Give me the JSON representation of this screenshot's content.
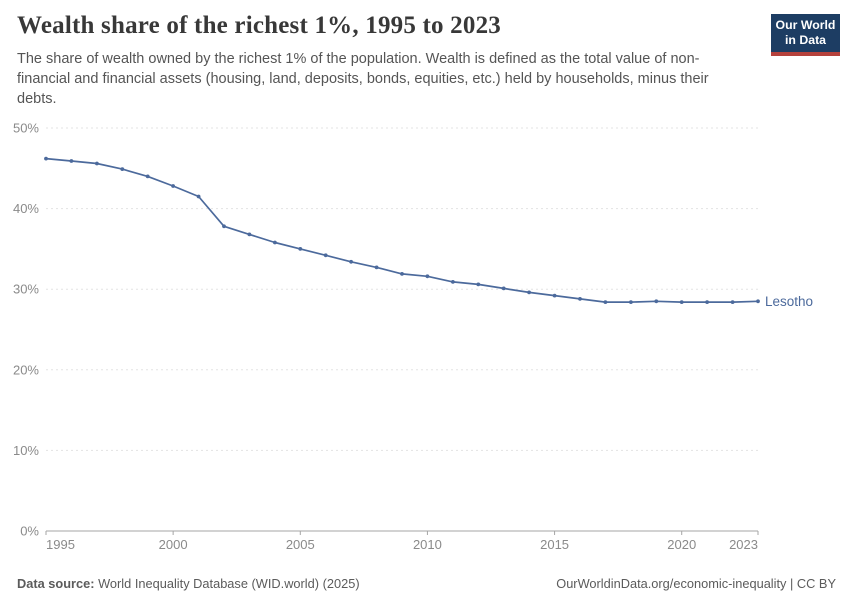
{
  "header": {
    "title": "Wealth share of the richest 1%, 1995 to 2023",
    "subtitle": "The share of wealth owned by the richest 1% of the population. Wealth is defined as the total value of non-financial and financial assets (housing, land, deposits, bonds, equities, etc.) held by households, minus their debts.",
    "logo": {
      "line1": "Our World",
      "line2": "in Data"
    }
  },
  "colors": {
    "series_blue": "#4c6a9c",
    "logo_bg": "#1d3d63",
    "logo_stripe": "#b5413c",
    "gridline": "#e3e3e3",
    "axis": "#a5a5a5",
    "tick_label": "#8a8a8a",
    "title_text": "#383838",
    "subtitle_text": "#555555",
    "footer_text": "#5b5b5b"
  },
  "chart_data": {
    "type": "line",
    "title": "Wealth share of the richest 1%, 1995 to 2023",
    "xlabel": "",
    "ylabel": "",
    "x": [
      1995,
      1996,
      1997,
      1998,
      1999,
      2000,
      2001,
      2002,
      2003,
      2004,
      2005,
      2006,
      2007,
      2008,
      2009,
      2010,
      2011,
      2012,
      2013,
      2014,
      2015,
      2016,
      2017,
      2018,
      2019,
      2020,
      2021,
      2022,
      2023
    ],
    "series": [
      {
        "name": "Lesotho",
        "color": "#4c6a9c",
        "values": [
          46.2,
          45.9,
          45.6,
          44.9,
          44.0,
          42.8,
          41.5,
          37.8,
          36.8,
          35.8,
          35.0,
          34.2,
          33.4,
          32.7,
          31.9,
          31.6,
          30.9,
          30.6,
          30.1,
          29.6,
          29.2,
          28.8,
          28.4,
          28.4,
          28.5,
          28.4,
          28.4,
          28.4,
          28.5
        ]
      }
    ],
    "xticks": [
      1995,
      2000,
      2005,
      2010,
      2015,
      2020,
      2023
    ],
    "yticks": [
      0,
      10,
      20,
      30,
      40,
      50
    ],
    "ytick_suffix": "%",
    "xlim": [
      1995,
      2023
    ],
    "ylim": [
      0,
      50
    ],
    "grid": "horizontal-dashed",
    "legend": "series-end-label"
  },
  "footer": {
    "source_label": "Data source:",
    "source_text": " World Inequality Database (WID.world) (2025)",
    "credit": "OurWorldinData.org/economic-inequality | CC BY"
  }
}
